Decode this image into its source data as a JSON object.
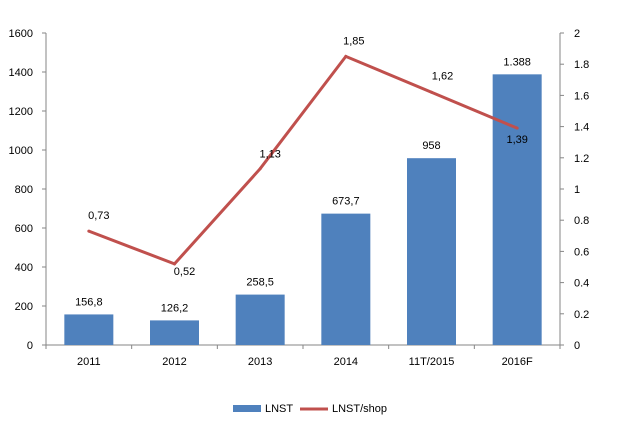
{
  "chart_data": {
    "type": "bar+line",
    "categories": [
      "2011",
      "2012",
      "2013",
      "2014",
      "11T/2015",
      "2016F"
    ],
    "series": [
      {
        "name": "LNST",
        "type": "bar",
        "axis": "left",
        "values": [
          156.8,
          126.2,
          258.5,
          673.7,
          958,
          1388
        ],
        "labels": [
          "156,8",
          "126,2",
          "258,5",
          "673,7",
          "958",
          "1.388"
        ],
        "color": "#4F81BD"
      },
      {
        "name": "LNST/shop",
        "type": "line",
        "axis": "right",
        "values": [
          0.73,
          0.52,
          1.13,
          1.85,
          1.62,
          1.39
        ],
        "labels": [
          "0,73",
          "0,52",
          "1,13",
          "1,85",
          "1,62",
          "1,39"
        ],
        "color": "#C0504D"
      }
    ],
    "y_left": {
      "ylim": [
        0,
        1600
      ],
      "ticks": [
        "0",
        "200",
        "400",
        "600",
        "800",
        "1000",
        "1200",
        "1400",
        "1600"
      ]
    },
    "y_right": {
      "ylim": [
        0,
        2
      ],
      "ticks": [
        "0",
        "0.2",
        "0.4",
        "0.6",
        "0.8",
        "1",
        "1.2",
        "1.4",
        "1.6",
        "1.8",
        "2"
      ]
    },
    "grid": false,
    "legend_position": "bottom"
  }
}
